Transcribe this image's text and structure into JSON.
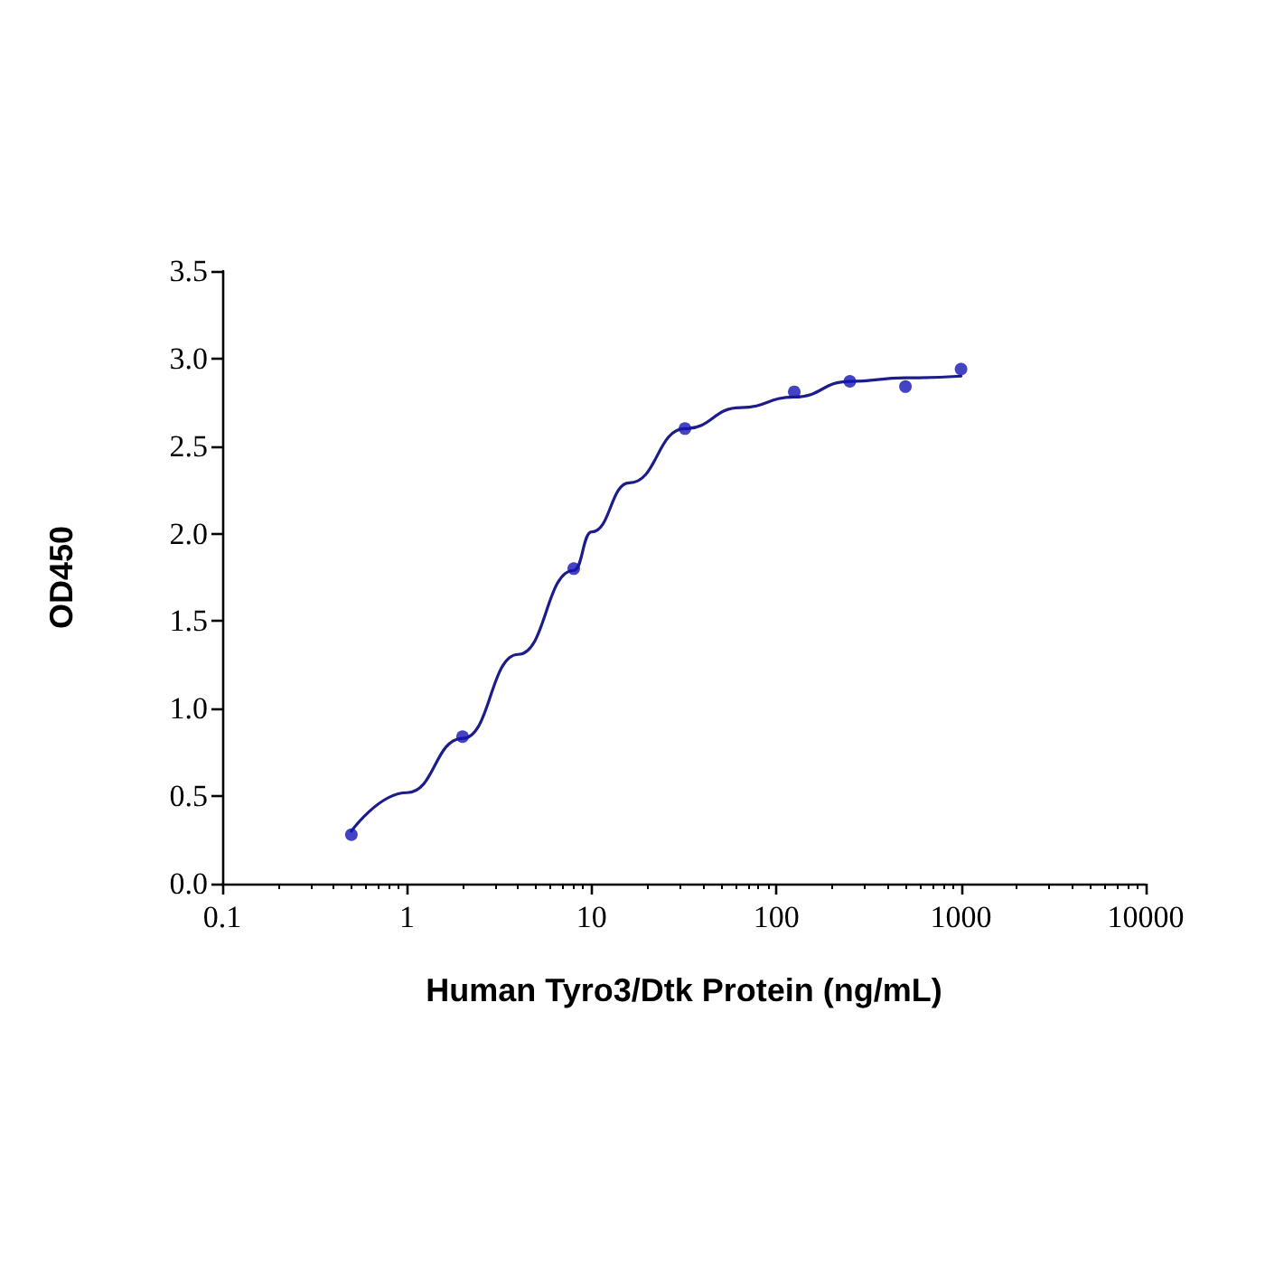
{
  "chart_data": {
    "type": "scatter",
    "xlabel": "Human Tyro3/Dtk Protein (ng/mL)",
    "ylabel": "OD450",
    "log": "x",
    "grid": false,
    "marker": "circle",
    "xlim": [
      0.1,
      10000
    ],
    "xticks": [
      0.1,
      1,
      10,
      100,
      1000,
      10000
    ],
    "ylim": [
      0,
      3.5
    ],
    "yticks": [
      {
        "value": 0,
        "label": "0.0"
      },
      {
        "value": 0.5,
        "label": "0.5"
      },
      {
        "value": 1,
        "label": "1.0"
      },
      {
        "value": 1.5,
        "label": "1.5"
      },
      {
        "value": 2,
        "label": "2.0"
      },
      {
        "value": 2.5,
        "label": "2.5"
      },
      {
        "value": 3,
        "label": "3.0"
      },
      {
        "value": 3.5,
        "label": "3.5"
      }
    ],
    "series": [
      {
        "type": "line",
        "marker": "none",
        "line_style": "solid",
        "color": "#1c1c8a",
        "x": [
          0.5,
          1,
          2,
          4,
          8,
          10,
          16,
          32,
          64,
          125,
          250,
          500,
          1000
        ],
        "values": [
          0.3,
          0.52,
          0.83,
          1.31,
          1.79,
          2.01,
          2.29,
          2.6,
          2.72,
          2.78,
          2.87,
          2.89,
          2.9
        ]
      },
      {
        "color": "#1414b4",
        "x": [
          0.5,
          2,
          8,
          32,
          125,
          250,
          500,
          1000
        ],
        "values": [
          0.28,
          0.84,
          1.8,
          2.6,
          2.81,
          2.87,
          2.84,
          2.94
        ]
      }
    ]
  }
}
